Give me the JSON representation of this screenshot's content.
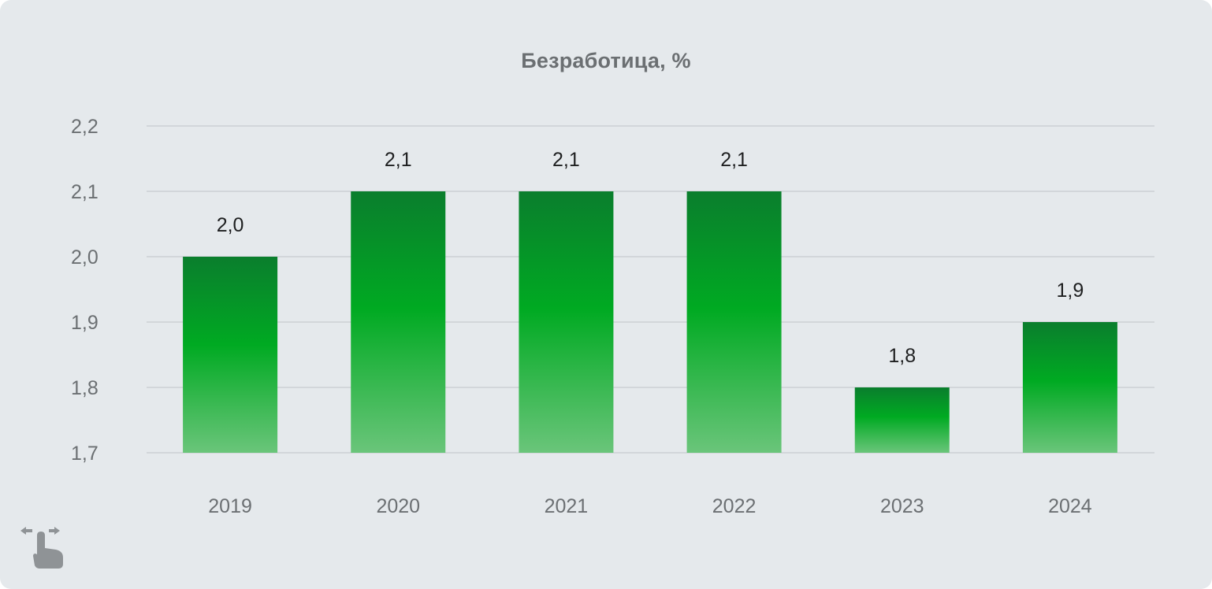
{
  "chart_data": {
    "type": "bar",
    "title": "Безработица, %",
    "xlabel": "",
    "ylabel": "",
    "categories": [
      "2019",
      "2020",
      "2021",
      "2022",
      "2023",
      "2024"
    ],
    "values": [
      2.0,
      2.1,
      2.1,
      2.1,
      1.8,
      1.9
    ],
    "value_labels": [
      "2,0",
      "2,1",
      "2,1",
      "2,1",
      "1,8",
      "1,9"
    ],
    "ylim": [
      1.7,
      2.2
    ],
    "yticks": [
      1.7,
      1.8,
      1.9,
      2.0,
      2.1,
      2.2
    ],
    "ytick_labels": [
      "1,7",
      "1,8",
      "1,9",
      "2,0",
      "2,1",
      "2,2"
    ],
    "grid": true,
    "legend": "none",
    "colors": {
      "bar_top": "#0a7e2d",
      "bar_mid": "#00aa22",
      "bar_bottom": "#6ac57a",
      "background": "#e5e9ec",
      "gridline": "#c8ccd0"
    }
  },
  "icons": {
    "swipe": "swipe-hand-icon"
  }
}
